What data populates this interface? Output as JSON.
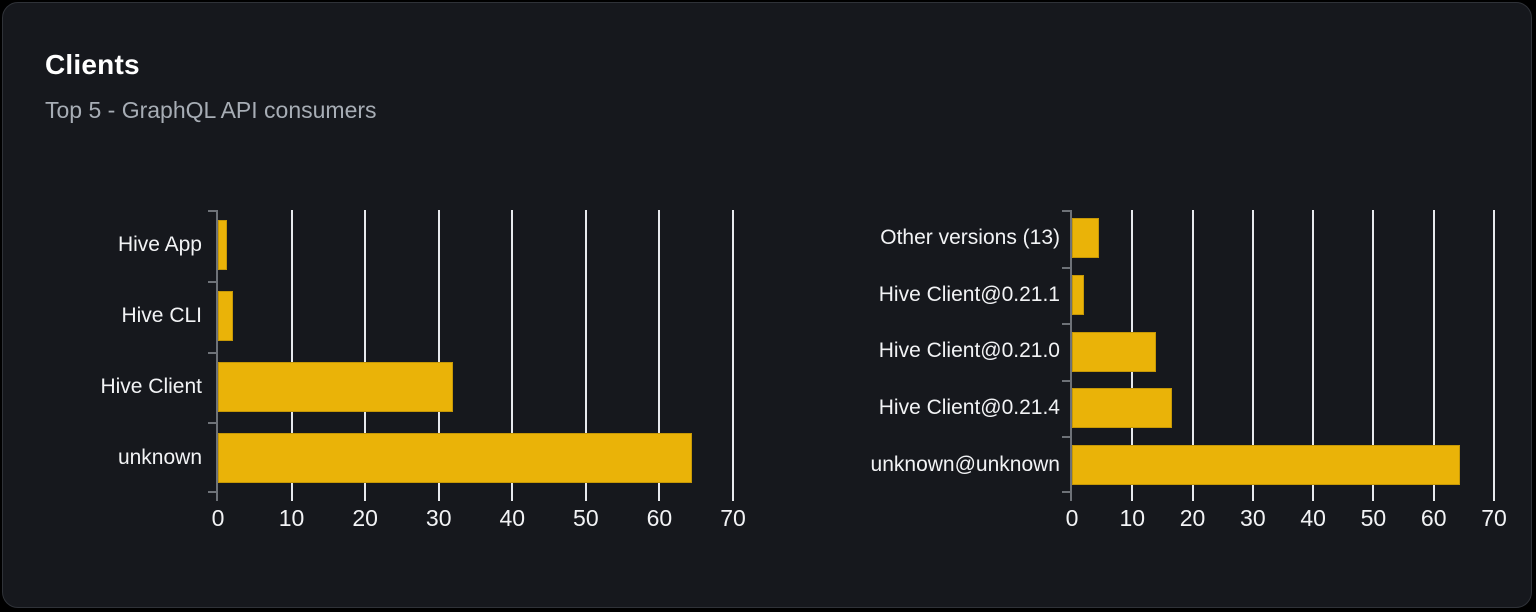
{
  "header": {
    "title": "Clients",
    "subtitle": "Top 5 - GraphQL API consumers"
  },
  "colors": {
    "bar": "#eab308",
    "card_background": "#16181d",
    "gridline": "#e7e9ed",
    "axis": "#6e7278",
    "title_text": "#ffffff",
    "subtitle_text": "#a7adb5",
    "label_text": "#f2f3f5"
  },
  "chart_data": [
    {
      "type": "bar",
      "orientation": "horizontal",
      "title": "",
      "categories": [
        "Hive App",
        "Hive CLI",
        "Hive Client",
        "unknown"
      ],
      "values": [
        1.2,
        2,
        32,
        64.4
      ],
      "xlabel": "",
      "ylabel": "",
      "xlim": [
        0,
        70
      ],
      "xticks": [
        0,
        10,
        20,
        30,
        40,
        50,
        60,
        70
      ],
      "grid": true,
      "legend": false
    },
    {
      "type": "bar",
      "orientation": "horizontal",
      "title": "",
      "categories": [
        "Other versions (13)",
        "Hive Client@0.21.1",
        "Hive Client@0.21.0",
        "Hive Client@0.21.4",
        "unknown@unknown"
      ],
      "values": [
        4.4,
        2,
        14,
        16.6,
        64.4
      ],
      "xlabel": "",
      "ylabel": "",
      "xlim": [
        0,
        70
      ],
      "xticks": [
        0,
        10,
        20,
        30,
        40,
        50,
        60,
        70
      ],
      "grid": true,
      "legend": false
    }
  ]
}
